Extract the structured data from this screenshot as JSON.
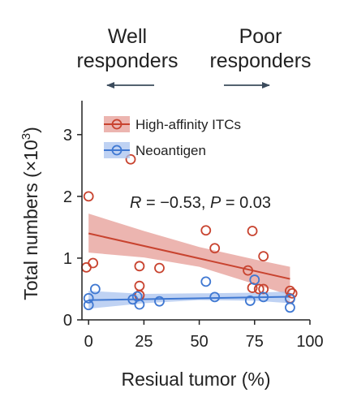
{
  "header": {
    "left_line1": "Well",
    "left_line2": "responders",
    "right_line1": "Poor",
    "right_line2": "responders"
  },
  "chart_data": {
    "type": "scatter",
    "xlabel": "Resiual tumor (%)",
    "ylabel": "Total numbers (×10",
    "ylabel_sup": "3",
    "ylabel_tail": ")",
    "xlim": [
      -3,
      100
    ],
    "ylim": [
      0,
      3.55
    ],
    "xticks": [
      "0",
      "25",
      "50",
      "75",
      "100"
    ],
    "yticks": [
      "0",
      "1",
      "2",
      "3"
    ],
    "xtick_values": [
      0,
      25,
      50,
      75,
      100
    ],
    "ytick_values": [
      0,
      1,
      2,
      3
    ],
    "annotation": "R = −0.53, P = 0.03",
    "legend_position": "top-left",
    "series": [
      {
        "name": "High-affinity ITCs",
        "color": "#c8432f",
        "band_color": "#e69c95",
        "points": [
          [
            -1,
            0.85
          ],
          [
            0,
            2.0
          ],
          [
            2,
            0.92
          ],
          [
            19,
            2.6
          ],
          [
            23,
            0.87
          ],
          [
            23,
            0.55
          ],
          [
            23,
            0.4
          ],
          [
            32,
            0.84
          ],
          [
            53,
            1.45
          ],
          [
            57,
            1.16
          ],
          [
            72,
            0.8
          ],
          [
            74,
            1.44
          ],
          [
            74,
            0.52
          ],
          [
            77,
            0.5
          ],
          [
            79,
            1.03
          ],
          [
            79,
            0.5
          ],
          [
            91,
            0.47
          ],
          [
            92,
            0.43
          ],
          [
            91,
            0.35
          ]
        ],
        "fit": {
          "intercept": 1.4,
          "slope": -0.0081
        },
        "band": {
          "upper": [
            [
              0,
              1.72
            ],
            [
              25,
              1.44
            ],
            [
              50,
              1.18
            ],
            [
              75,
              0.98
            ],
            [
              91,
              0.86
            ]
          ],
          "lower": [
            [
              0,
              1.09
            ],
            [
              25,
              1.01
            ],
            [
              50,
              0.86
            ],
            [
              75,
              0.58
            ],
            [
              91,
              0.4
            ]
          ]
        }
      },
      {
        "name": "Neoantigen",
        "color": "#3f78d2",
        "band_color": "#a9c3ef",
        "points": [
          [
            0,
            0.35
          ],
          [
            0,
            0.24
          ],
          [
            3,
            0.5
          ],
          [
            20,
            0.33
          ],
          [
            22,
            0.38
          ],
          [
            23,
            0.25
          ],
          [
            32,
            0.3
          ],
          [
            53,
            0.62
          ],
          [
            57,
            0.37
          ],
          [
            73,
            0.31
          ],
          [
            75,
            0.65
          ],
          [
            79,
            0.37
          ],
          [
            91,
            0.34
          ],
          [
            91,
            0.2
          ]
        ],
        "fit": {
          "intercept": 0.32,
          "slope": 0.0006
        },
        "band": {
          "upper": [
            [
              0,
              0.47
            ],
            [
              25,
              0.42
            ],
            [
              50,
              0.43
            ],
            [
              75,
              0.44
            ],
            [
              91,
              0.46
            ]
          ],
          "lower": [
            [
              0,
              0.18
            ],
            [
              25,
              0.27
            ],
            [
              50,
              0.32
            ],
            [
              75,
              0.31
            ],
            [
              91,
              0.27
            ]
          ]
        }
      }
    ]
  }
}
